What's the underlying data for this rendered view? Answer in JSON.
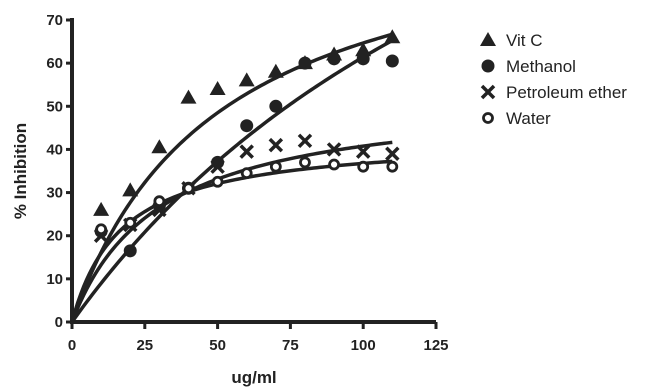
{
  "chart_data": {
    "type": "scatter",
    "title": "",
    "xlabel": "ug/ml",
    "ylabel": "% Inhibition",
    "xlim": [
      0,
      125
    ],
    "ylim": [
      0,
      70
    ],
    "xticks": [
      0,
      25,
      50,
      75,
      100,
      125
    ],
    "yticks": [
      0,
      10,
      20,
      30,
      40,
      50,
      60,
      70
    ],
    "legend_position": "right",
    "grid": false,
    "series": [
      {
        "name": "Vit C",
        "marker": "triangle",
        "x": [
          10,
          20,
          30,
          40,
          50,
          60,
          70,
          80,
          90,
          100,
          110
        ],
        "y": [
          26,
          30.5,
          40.5,
          52,
          54,
          56,
          58,
          60,
          62,
          63,
          66
        ],
        "fit": {
          "vmax": 97,
          "km": 50
        }
      },
      {
        "name": "Methanol",
        "marker": "filled-circle",
        "x": [
          10,
          20,
          30,
          40,
          50,
          60,
          70,
          80,
          90,
          100,
          110
        ],
        "y": [
          21,
          16.5,
          27,
          31,
          37,
          45.5,
          50,
          60,
          61,
          61,
          60.5
        ],
        "fit": {
          "vmax": 175,
          "km": 185
        }
      },
      {
        "name": "Petroleum ether",
        "marker": "cross",
        "x": [
          10,
          20,
          30,
          40,
          50,
          60,
          70,
          80,
          90,
          100,
          110
        ],
        "y": [
          20,
          22.5,
          26,
          31,
          36,
          39.5,
          41,
          42,
          40,
          39.5,
          39
        ],
        "fit": {
          "vmax": 53,
          "km": 30
        }
      },
      {
        "name": "Water",
        "marker": "open-circle",
        "x": [
          10,
          20,
          30,
          40,
          50,
          60,
          70,
          80,
          90,
          100,
          110
        ],
        "y": [
          21.5,
          23,
          28,
          31,
          32.5,
          34.5,
          36,
          37,
          36.5,
          36,
          36
        ],
        "fit": {
          "vmax": 43,
          "km": 17
        }
      }
    ]
  }
}
